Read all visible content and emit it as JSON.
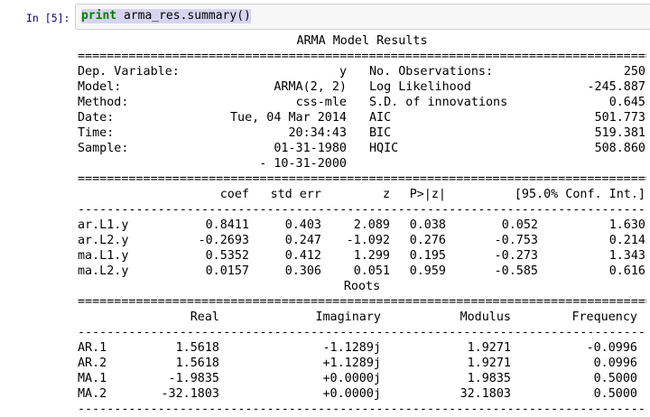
{
  "cell": {
    "prompt": "In [5]:",
    "code": {
      "keyword": "print",
      "rest": " arma_res.summary()"
    }
  },
  "colors": {
    "prompt": "#000080",
    "keyword": "#008000",
    "selection": "#d7d4f0",
    "cell_bg": "#f7f7f7",
    "cell_border": "#cfcfcf"
  },
  "summary": {
    "title": "ARMA Model Results",
    "sep_double": "================================================================================",
    "sep_dash": "--------------------------------------------------------------------------------",
    "info_rows": [
      {
        "ll": "Dep. Variable:",
        "lv": "y",
        "rl": "No. Observations:",
        "rv": "250"
      },
      {
        "ll": "Model:",
        "lv": "ARMA(2, 2)",
        "rl": "Log Likelihood",
        "rv": "-245.887"
      },
      {
        "ll": "Method:",
        "lv": "css-mle",
        "rl": "S.D. of innovations",
        "rv": "0.645"
      },
      {
        "ll": "Date:",
        "lv": "Tue, 04 Mar 2014",
        "rl": "AIC",
        "rv": "501.773"
      },
      {
        "ll": "Time:",
        "lv": "20:34:43",
        "rl": "BIC",
        "rv": "519.381"
      },
      {
        "ll": "Sample:",
        "lv": "01-31-1980",
        "rl": "HQIC",
        "rv": "508.860"
      },
      {
        "ll": "",
        "lv": "- 10-31-2000",
        "rl": "",
        "rv": ""
      }
    ],
    "coef_table": {
      "headers": [
        "coef",
        "std err",
        "z",
        "P>|z|",
        "[95.0% Conf. Int.]"
      ],
      "rows": [
        {
          "name": "ar.L1.y",
          "values": [
            "0.8411",
            "0.403",
            "2.089",
            "0.038",
            "0.052",
            "1.630"
          ]
        },
        {
          "name": "ar.L2.y",
          "values": [
            "-0.2693",
            "0.247",
            "-1.092",
            "0.276",
            "-0.753",
            "0.214"
          ]
        },
        {
          "name": "ma.L1.y",
          "values": [
            "0.5352",
            "0.412",
            "1.299",
            "0.195",
            "-0.273",
            "1.343"
          ]
        },
        {
          "name": "ma.L2.y",
          "values": [
            "0.0157",
            "0.306",
            "0.051",
            "0.959",
            "-0.585",
            "0.616"
          ]
        }
      ]
    },
    "roots_title": "Roots",
    "roots_table": {
      "headers": [
        "Real",
        "Imaginary",
        "Modulus",
        "Frequency"
      ],
      "rows": [
        {
          "name": "AR.1",
          "values": [
            "1.5618",
            "-1.1289j",
            "1.9271",
            "-0.0996"
          ]
        },
        {
          "name": "AR.2",
          "values": [
            "1.5618",
            "+1.1289j",
            "1.9271",
            "0.0996"
          ]
        },
        {
          "name": "MA.1",
          "values": [
            "-1.9835",
            "+0.0000j",
            "1.9835",
            "0.5000"
          ]
        },
        {
          "name": "MA.2",
          "values": [
            "-32.1803",
            "+0.0000j",
            "32.1803",
            "0.5000"
          ]
        }
      ]
    }
  }
}
